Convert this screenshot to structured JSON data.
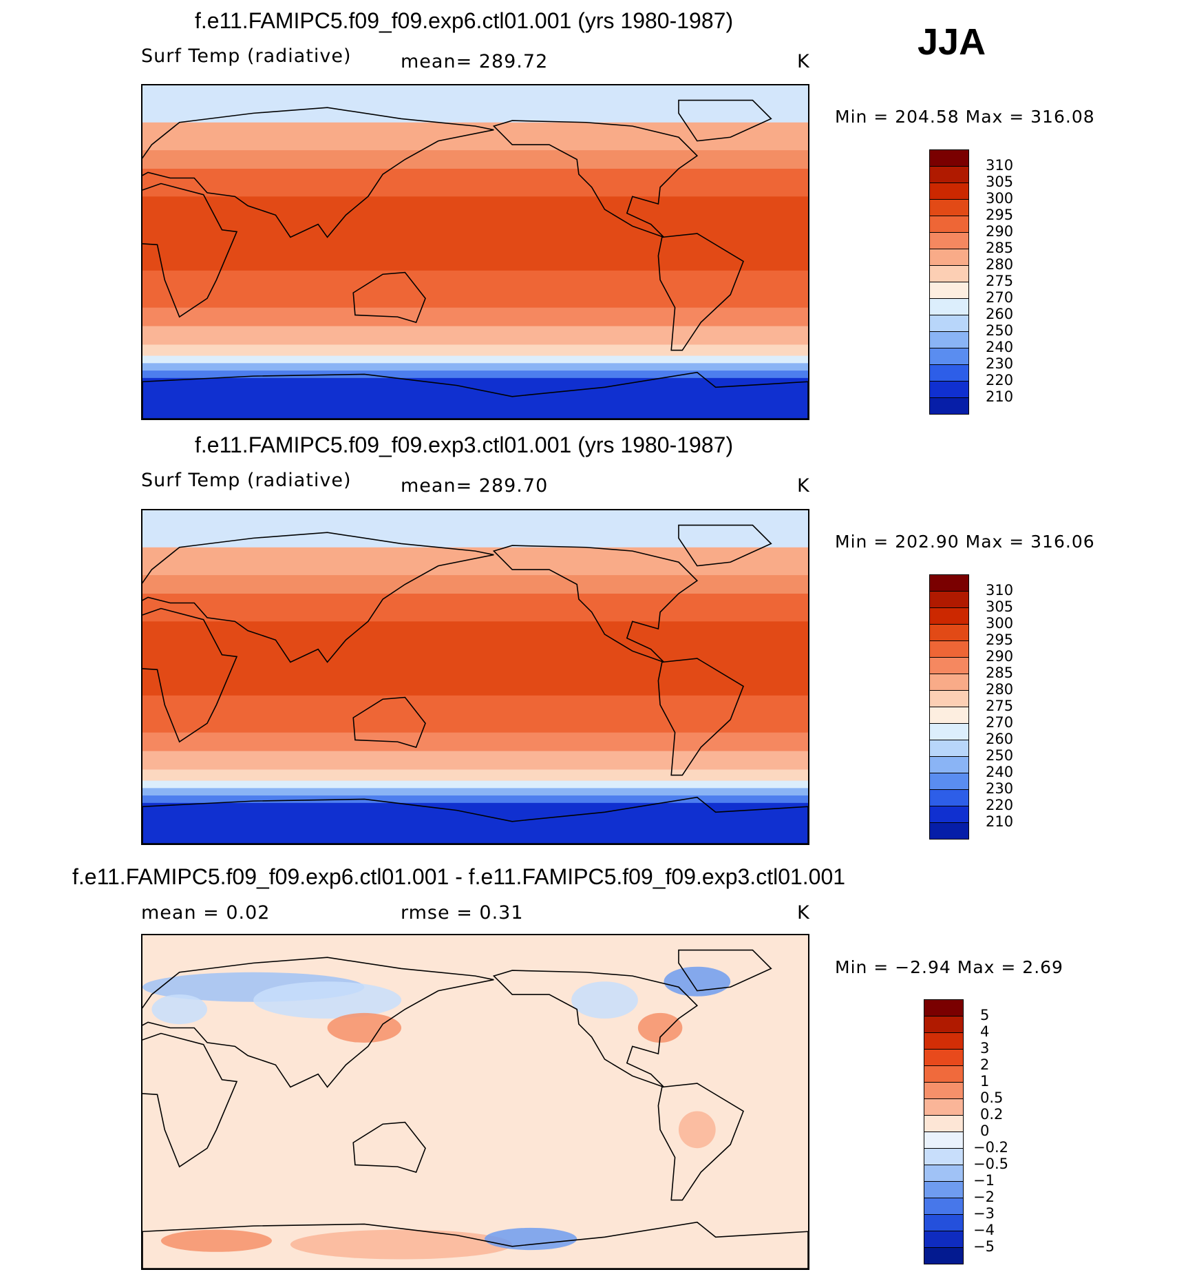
{
  "season": "JJA",
  "panels": [
    {
      "title": "f.e11.FAMIPC5.f09_f09.exp6.ctl01.001 (yrs 1980-1987)",
      "left": "Surf Temp (radiative)",
      "center": "mean= 289.72",
      "units": "K",
      "minmax": "Min = 204.58 Max = 316.08",
      "colorbar": {
        "labels": [
          "310",
          "305",
          "300",
          "295",
          "290",
          "285",
          "280",
          "275",
          "270",
          "260",
          "250",
          "240",
          "230",
          "220",
          "210"
        ],
        "colors": [
          "#7a0000",
          "#b01a00",
          "#cc2800",
          "#e24a16",
          "#ee6636",
          "#f58860",
          "#f9ab88",
          "#fccfb4",
          "#fdeee0",
          "#dceefc",
          "#b8d6fa",
          "#8ab4f5",
          "#5a8df0",
          "#2d5ee8",
          "#1030d0",
          "#061ea8"
        ]
      }
    },
    {
      "title": "f.e11.FAMIPC5.f09_f09.exp3.ctl01.001 (yrs 1980-1987)",
      "left": "Surf Temp (radiative)",
      "center": "mean= 289.70",
      "units": "K",
      "minmax": "Min = 202.90 Max = 316.06",
      "colorbar": {
        "labels": [
          "310",
          "305",
          "300",
          "295",
          "290",
          "285",
          "280",
          "275",
          "270",
          "260",
          "250",
          "240",
          "230",
          "220",
          "210"
        ],
        "colors": [
          "#7a0000",
          "#b01a00",
          "#cc2800",
          "#e24a16",
          "#ee6636",
          "#f58860",
          "#f9ab88",
          "#fccfb4",
          "#fdeee0",
          "#dceefc",
          "#b8d6fa",
          "#8ab4f5",
          "#5a8df0",
          "#2d5ee8",
          "#1030d0",
          "#061ea8"
        ]
      }
    },
    {
      "title": "f.e11.FAMIPC5.f09_f09.exp6.ctl01.001 - f.e11.FAMIPC5.f09_f09.exp3.ctl01.001",
      "left": "mean = 0.02",
      "center": "rmse = 0.31",
      "units": "K",
      "minmax": "Min = −2.94 Max = 2.69",
      "colorbar": {
        "labels": [
          "5",
          "4",
          "3",
          "2",
          "1",
          "0.5",
          "0.2",
          "0",
          "−0.2",
          "−0.5",
          "−1",
          "−2",
          "−3",
          "−4",
          "−5"
        ],
        "colors": [
          "#7a0000",
          "#b01a00",
          "#d22e06",
          "#e84a1c",
          "#f06a3c",
          "#f6906a",
          "#fab598",
          "#fde6d6",
          "#eaf2fc",
          "#c8defb",
          "#a0c2f6",
          "#6f9cf0",
          "#4777ea",
          "#2450dc",
          "#0f2cc0",
          "#031a90"
        ]
      }
    }
  ]
}
